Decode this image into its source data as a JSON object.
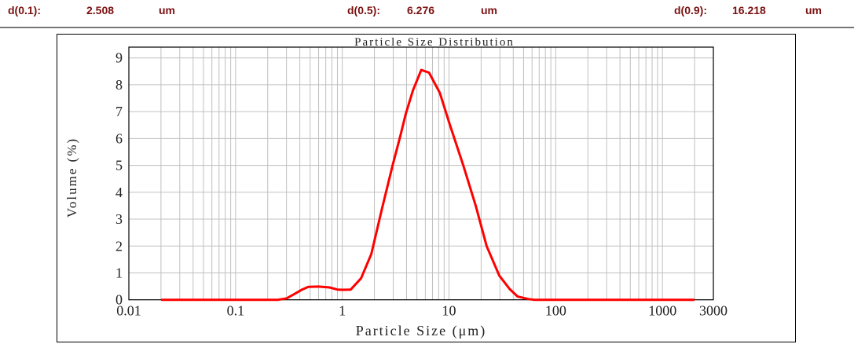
{
  "header": {
    "items": [
      {
        "label": "d(0.1):",
        "value": "2.508",
        "unit": "um"
      },
      {
        "label": "d(0.5):",
        "value": "6.276",
        "unit": "um"
      },
      {
        "label": "d(0.9):",
        "value": "16.218",
        "unit": "um"
      }
    ]
  },
  "chart_data": {
    "type": "line",
    "title": "Particle Size Distribution",
    "xlabel": "Particle Size (μm)",
    "ylabel": "Volume (%)",
    "xscale": "log",
    "xlim": [
      0.01,
      3000
    ],
    "ylim": [
      0,
      9.4
    ],
    "xticks": [
      "0.01",
      "0.1",
      "1",
      "10",
      "100",
      "1000",
      "3000"
    ],
    "yticks": [
      "0",
      "1",
      "2",
      "3",
      "4",
      "5",
      "6",
      "7",
      "8",
      "9"
    ],
    "grid": true,
    "line_color": "#ff0000",
    "series": [
      {
        "x": [
          0.02,
          0.1,
          0.25,
          0.3,
          0.35,
          0.42,
          0.48,
          0.6,
          0.76,
          0.9,
          1.0,
          1.2,
          1.5,
          1.87,
          2.36,
          2.96,
          3.5,
          3.92,
          4.6,
          5.5,
          6.5,
          8.2,
          10.2,
          13.6,
          17.8,
          22.5,
          29.6,
          37,
          44,
          55,
          62,
          100,
          1000,
          2000
        ],
        "y": [
          0,
          0,
          0,
          0.05,
          0.2,
          0.38,
          0.48,
          0.49,
          0.46,
          0.38,
          0.37,
          0.38,
          0.8,
          1.7,
          3.4,
          5.0,
          6.1,
          6.9,
          7.8,
          8.55,
          8.45,
          7.7,
          6.5,
          5.0,
          3.5,
          2.0,
          0.9,
          0.4,
          0.12,
          0.03,
          0,
          0,
          0,
          0
        ]
      }
    ]
  }
}
